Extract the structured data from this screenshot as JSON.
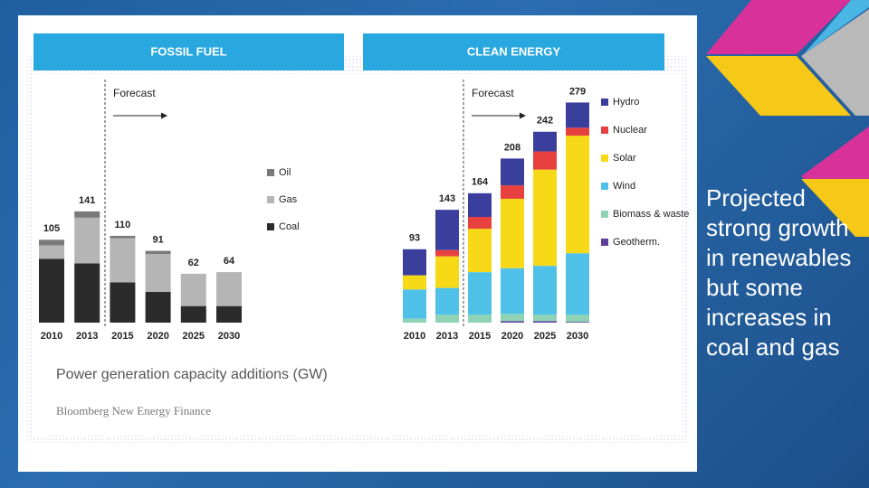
{
  "slide": {
    "body": "Projected strong growth in renewables but some increases in coal and gas"
  },
  "caption": "Power generation capacity additions (GW)",
  "source": "Bloomberg New Energy Finance",
  "chart_data": [
    {
      "type": "stacked_bar",
      "title": "FOSSIL FUEL",
      "annotation": "Forecast",
      "categories": [
        "2010",
        "2013",
        "2015",
        "2020",
        "2025",
        "2030"
      ],
      "totals": [
        105,
        141,
        110,
        91,
        62,
        64
      ],
      "series": [
        {
          "name": "Coal",
          "color": "#2b2b2b",
          "values": [
            81,
            75,
            51,
            39,
            21,
            21
          ]
        },
        {
          "name": "Gas",
          "color": "#b5b5b5",
          "values": [
            17,
            58,
            56,
            48,
            41,
            43
          ]
        },
        {
          "name": "Oil",
          "color": "#7a7a7a",
          "values": [
            7,
            8,
            3,
            4,
            0,
            0
          ]
        }
      ]
    },
    {
      "type": "stacked_bar",
      "title": "CLEAN ENERGY",
      "annotation": "Forecast",
      "categories": [
        "2010",
        "2013",
        "2015",
        "2020",
        "2025",
        "2030"
      ],
      "totals": [
        93,
        143,
        164,
        208,
        242,
        279
      ],
      "series": [
        {
          "name": "Geotherm.",
          "color": "#5d3f9e",
          "values": [
            0,
            0,
            0,
            2,
            2,
            1
          ]
        },
        {
          "name": "Biomass & waste",
          "color": "#8fd3b5",
          "values": [
            5,
            10,
            10,
            9,
            8,
            9
          ]
        },
        {
          "name": "Wind",
          "color": "#4fc1e9",
          "values": [
            37,
            34,
            54,
            58,
            62,
            78
          ]
        },
        {
          "name": "Solar",
          "color": "#f7d917",
          "values": [
            18,
            40,
            55,
            88,
            122,
            149
          ]
        },
        {
          "name": "Nuclear",
          "color": "#e8403f",
          "values": [
            0,
            8,
            15,
            17,
            23,
            10
          ]
        },
        {
          "name": "Hydro",
          "color": "#3a3f9e",
          "values": [
            33,
            51,
            30,
            34,
            25,
            32
          ]
        }
      ]
    }
  ]
}
